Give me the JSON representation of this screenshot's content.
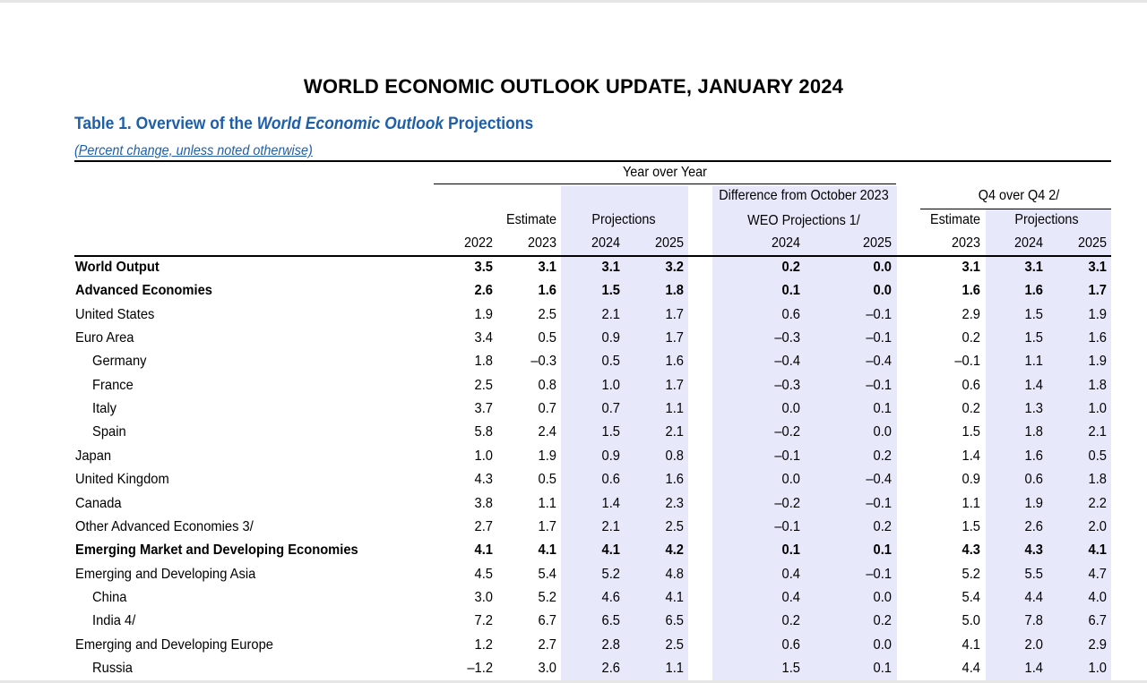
{
  "doc_title": "WORLD ECONOMIC OUTLOOK UPDATE, JANUARY 2024",
  "caption": {
    "prefix": "Table 1. Overview of the ",
    "italic": "World Economic Outlook",
    "suffix": " Projections"
  },
  "subcaption": "(Percent change, unless noted otherwise)",
  "headers": {
    "year_over_year": "Year over Year",
    "difference_line1": "Difference from October 2023",
    "difference_line2": "WEO Projections 1/",
    "q4_over_q4": "Q4 over Q4 2/",
    "estimate": "Estimate",
    "projections": "Projections",
    "estimate_q4": "Estimate",
    "projections_q4": "Projections",
    "years": [
      "2022",
      "2023",
      "2024",
      "2025",
      "2024",
      "2025",
      "2023",
      "2024",
      "2025"
    ]
  },
  "rows": [
    {
      "label": "World Output",
      "bold": true,
      "indent": 0,
      "values": [
        "3.5",
        "3.1",
        "3.1",
        "3.2",
        "0.2",
        "0.0",
        "3.1",
        "3.1",
        "3.1"
      ]
    },
    {
      "label": "Advanced Economies",
      "bold": true,
      "indent": 0,
      "values": [
        "2.6",
        "1.6",
        "1.5",
        "1.8",
        "0.1",
        "0.0",
        "1.6",
        "1.6",
        "1.7"
      ]
    },
    {
      "label": "United States",
      "bold": false,
      "indent": 0,
      "values": [
        "1.9",
        "2.5",
        "2.1",
        "1.7",
        "0.6",
        "–0.1",
        "2.9",
        "1.5",
        "1.9"
      ]
    },
    {
      "label": "Euro Area",
      "bold": false,
      "indent": 0,
      "values": [
        "3.4",
        "0.5",
        "0.9",
        "1.7",
        "–0.3",
        "–0.1",
        "0.2",
        "1.5",
        "1.6"
      ]
    },
    {
      "label": "Germany",
      "bold": false,
      "indent": 1,
      "values": [
        "1.8",
        "–0.3",
        "0.5",
        "1.6",
        "–0.4",
        "–0.4",
        "–0.1",
        "1.1",
        "1.9"
      ]
    },
    {
      "label": "France",
      "bold": false,
      "indent": 1,
      "values": [
        "2.5",
        "0.8",
        "1.0",
        "1.7",
        "–0.3",
        "–0.1",
        "0.6",
        "1.4",
        "1.8"
      ]
    },
    {
      "label": "Italy",
      "bold": false,
      "indent": 1,
      "values": [
        "3.7",
        "0.7",
        "0.7",
        "1.1",
        "0.0",
        "0.1",
        "0.2",
        "1.3",
        "1.0"
      ]
    },
    {
      "label": "Spain",
      "bold": false,
      "indent": 1,
      "values": [
        "5.8",
        "2.4",
        "1.5",
        "2.1",
        "–0.2",
        "0.0",
        "1.5",
        "1.8",
        "2.1"
      ]
    },
    {
      "label": "Japan",
      "bold": false,
      "indent": 0,
      "values": [
        "1.0",
        "1.9",
        "0.9",
        "0.8",
        "–0.1",
        "0.2",
        "1.4",
        "1.6",
        "0.5"
      ]
    },
    {
      "label": "United Kingdom",
      "bold": false,
      "indent": 0,
      "values": [
        "4.3",
        "0.5",
        "0.6",
        "1.6",
        "0.0",
        "–0.4",
        "0.9",
        "0.6",
        "1.8"
      ]
    },
    {
      "label": "Canada",
      "bold": false,
      "indent": 0,
      "values": [
        "3.8",
        "1.1",
        "1.4",
        "2.3",
        "–0.2",
        "–0.1",
        "1.1",
        "1.9",
        "2.2"
      ]
    },
    {
      "label": "Other Advanced Economies 3/",
      "bold": false,
      "indent": 0,
      "values": [
        "2.7",
        "1.7",
        "2.1",
        "2.5",
        "–0.1",
        "0.2",
        "1.5",
        "2.6",
        "2.0"
      ]
    },
    {
      "label": "Emerging Market and Developing Economies",
      "bold": true,
      "indent": 0,
      "values": [
        "4.1",
        "4.1",
        "4.1",
        "4.2",
        "0.1",
        "0.1",
        "4.3",
        "4.3",
        "4.1"
      ]
    },
    {
      "label": "Emerging and Developing Asia",
      "bold": false,
      "indent": 0,
      "values": [
        "4.5",
        "5.4",
        "5.2",
        "4.8",
        "0.4",
        "–0.1",
        "5.2",
        "5.5",
        "4.7"
      ]
    },
    {
      "label": "China",
      "bold": false,
      "indent": 1,
      "values": [
        "3.0",
        "5.2",
        "4.6",
        "4.1",
        "0.4",
        "0.0",
        "5.4",
        "4.4",
        "4.0"
      ]
    },
    {
      "label": "India 4/",
      "bold": false,
      "indent": 1,
      "values": [
        "7.2",
        "6.7",
        "6.5",
        "6.5",
        "0.2",
        "0.2",
        "5.0",
        "7.8",
        "6.7"
      ]
    },
    {
      "label": "Emerging and Developing Europe",
      "bold": false,
      "indent": 0,
      "values": [
        "1.2",
        "2.7",
        "2.8",
        "2.5",
        "0.6",
        "0.0",
        "4.1",
        "2.0",
        "2.9"
      ]
    },
    {
      "label": "Russia",
      "bold": false,
      "indent": 1,
      "values": [
        "–1.2",
        "3.0",
        "2.6",
        "1.1",
        "1.5",
        "0.1",
        "4.4",
        "1.4",
        "1.0"
      ]
    }
  ]
}
